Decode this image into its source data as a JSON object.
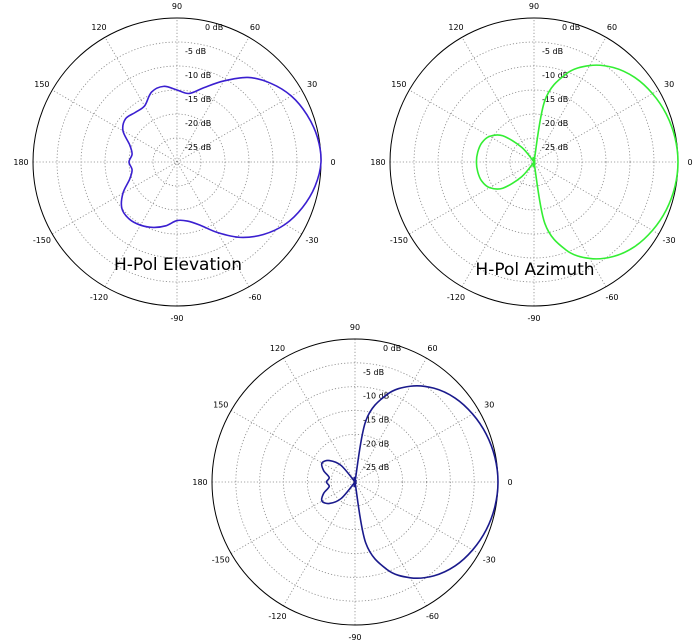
{
  "chart_data": [
    {
      "type": "polar",
      "title": "H-Pol Elevation",
      "series": [
        {
          "color": "#3a1fd0",
          "theta_deg": [
            0,
            10,
            20,
            30,
            40,
            50,
            60,
            70,
            80,
            90,
            100,
            110,
            120,
            130,
            140,
            150,
            160,
            170,
            180,
            190,
            200,
            210,
            220,
            230,
            240,
            250,
            260,
            270,
            280,
            290,
            300,
            310,
            320,
            330,
            340,
            350
          ],
          "r_db": [
            0,
            -0.3,
            -1.2,
            -2.5,
            -4.5,
            -7,
            -10.5,
            -13.5,
            -15.5,
            -15,
            -14,
            -14.5,
            -16.5,
            -16.5,
            -16,
            -17,
            -19.5,
            -20.5,
            -20,
            -20.5,
            -19.5,
            -17,
            -15,
            -14.5,
            -14.8,
            -15.5,
            -16.5,
            -17.8,
            -17.5,
            -16,
            -13,
            -9.5,
            -6.5,
            -4,
            -2.2,
            -0.8
          ]
        }
      ],
      "r_ticks": [
        "0 dB",
        "-5 dB",
        "-10 dB",
        "-15 dB",
        "-20 dB",
        "-25 dB"
      ],
      "angle_ticks": [
        "0",
        "30",
        "60",
        "90",
        "120",
        "150",
        "180",
        "-150",
        "-120",
        "-90",
        "-60",
        "-30"
      ],
      "rlim": [
        -30,
        0
      ]
    },
    {
      "type": "polar",
      "title": "H-Pol Azimuth",
      "series": [
        {
          "color": "#33ee33",
          "theta_deg": [
            0,
            10,
            20,
            30,
            40,
            50,
            60,
            70,
            80,
            90,
            100,
            110,
            120,
            130,
            140,
            150,
            160,
            170,
            180,
            190,
            200,
            210,
            220,
            230,
            240,
            250,
            260,
            270,
            280,
            290,
            300,
            310,
            320,
            330,
            340,
            350
          ],
          "r_db": [
            0,
            -0.2,
            -0.7,
            -1.5,
            -2.6,
            -4.3,
            -6.8,
            -10.5,
            -17,
            -30,
            -30,
            -30,
            -30,
            -26,
            -21.5,
            -19.3,
            -18.4,
            -18.1,
            -18,
            -18.1,
            -18.4,
            -19.3,
            -21.5,
            -26,
            -30,
            -30,
            -30,
            -30,
            -17,
            -10.5,
            -6.8,
            -4.3,
            -2.6,
            -1.5,
            -0.7,
            -0.2
          ]
        }
      ],
      "r_ticks": [
        "0 dB",
        "-5 dB",
        "-10 dB",
        "-15 dB",
        "-20 dB",
        "-25 dB"
      ],
      "angle_ticks": [
        "0",
        "30",
        "60",
        "90",
        "120",
        "150",
        "180",
        "-150",
        "-120",
        "-90",
        "-60",
        "-30"
      ],
      "rlim": [
        -30,
        0
      ]
    },
    {
      "type": "polar",
      "title": "",
      "series": [
        {
          "color": "#1a1a8c",
          "theta_deg": [
            0,
            10,
            20,
            30,
            40,
            50,
            60,
            70,
            80,
            90,
            100,
            110,
            120,
            130,
            140,
            150,
            160,
            170,
            180,
            190,
            200,
            210,
            220,
            230,
            240,
            250,
            260,
            270,
            280,
            290,
            300,
            310,
            320,
            330,
            340,
            350
          ],
          "r_db": [
            0,
            -0.2,
            -0.7,
            -1.5,
            -2.6,
            -4.3,
            -6.8,
            -10.5,
            -17,
            -30,
            -30,
            -30,
            -30,
            -25.5,
            -23,
            -22,
            -23,
            -24.5,
            -24,
            -24.5,
            -23,
            -22,
            -23,
            -25.5,
            -30,
            -30,
            -30,
            -30,
            -17,
            -10.5,
            -6.8,
            -4.3,
            -2.6,
            -1.5,
            -0.7,
            -0.2
          ]
        }
      ],
      "r_ticks": [
        "0 dB",
        "-5 dB",
        "-10 dB",
        "-15 dB",
        "-20 dB",
        "-25 dB"
      ],
      "angle_ticks": [
        "0",
        "30",
        "60",
        "90",
        "120",
        "150",
        "180",
        "-150",
        "-120",
        "-90",
        "-60",
        "-30"
      ],
      "rlim": [
        -30,
        0
      ]
    }
  ]
}
